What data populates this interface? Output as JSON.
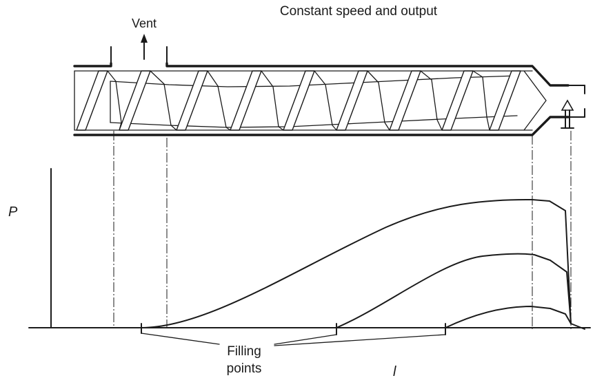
{
  "title": "Constant speed and output",
  "vent_label": "Vent",
  "y_axis_label": "P",
  "x_axis_label": "l",
  "filling_points_label": [
    "Filling",
    "points"
  ],
  "colors": {
    "ink": "#1a1a1a",
    "background": "#ffffff"
  }
}
